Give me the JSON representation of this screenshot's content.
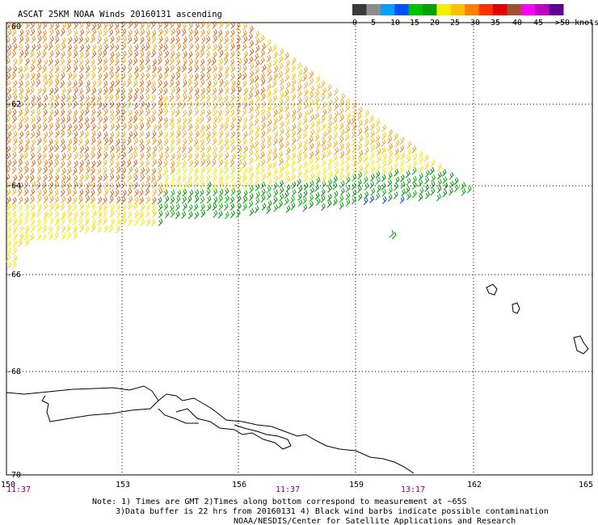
{
  "title": "ASCAT 25KM NOAA Winds 20160131 ascending",
  "legend": {
    "colors": [
      "#3a3a3a",
      "#8c8c8c",
      "#00a0ff",
      "#0050ff",
      "#00c000",
      "#00a000",
      "#f0f000",
      "#ffc000",
      "#ff8000",
      "#ff3000",
      "#e00000",
      "#a05030",
      "#ff00ff",
      "#c000c0",
      "#600090"
    ],
    "labels": [
      "0",
      "5",
      "10",
      "15",
      "20",
      "25",
      "30",
      "35",
      "40",
      "45",
      ">50 knots"
    ]
  },
  "axes": {
    "lat_labels": [
      "-60",
      "-62",
      "-64",
      "-66",
      "-68",
      "-70"
    ],
    "lon_labels": [
      "150",
      "153",
      "156",
      "159",
      "162",
      "165"
    ],
    "time_labels": [
      "11:37",
      "11:37",
      "13:17"
    ]
  },
  "notes": [
    "Note: 1) Times are GMT 2)Times along bottom correspond to measurement at ~65S",
    "3)Data buffer is 22 hrs from 20160131 4) Black wind barbs indicate possible contamination",
    "NOAA/NESDIS/Center for Satellite Applications and Research"
  ],
  "chart_data": {
    "type": "map",
    "product": "ASCAT 25KM NOAA Winds",
    "date": "20160131",
    "pass": "ascending",
    "lon_range": [
      150,
      165
    ],
    "lat_range": [
      -70,
      -60
    ],
    "grid": true,
    "speed_bins_knots": [
      0,
      5,
      10,
      15,
      20,
      25,
      30,
      35,
      40,
      45,
      50
    ],
    "swath_dominant_speeds": [
      {
        "region": "western swath (-60 to -64)",
        "speed_knots": "30-35"
      },
      {
        "region": "eastern swath",
        "speed_knots": "25-30"
      },
      {
        "region": "southern edge near -64.5",
        "speed_knots": "15-20"
      },
      {
        "region": "small patch near 160E, -64.5",
        "speed_knots": "10-15"
      }
    ]
  }
}
